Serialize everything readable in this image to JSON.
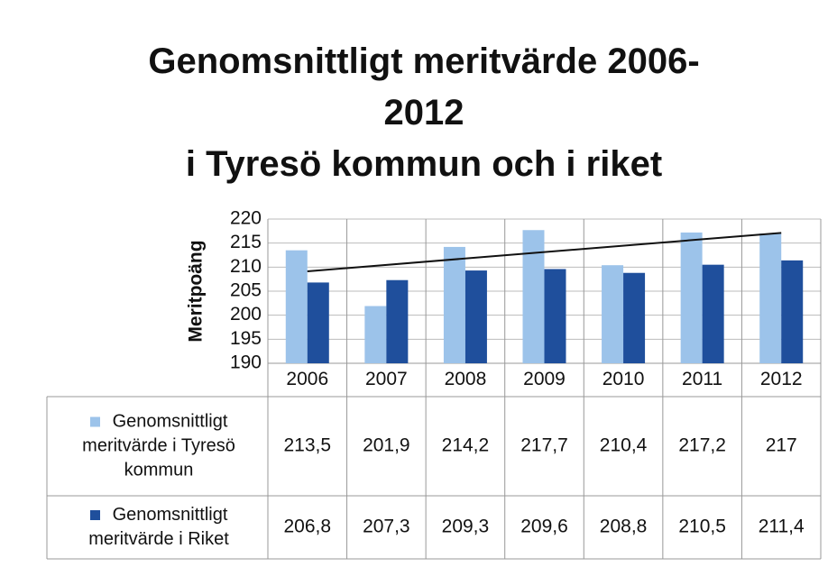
{
  "chart_data": {
    "type": "bar",
    "title": "Genomsnittligt meritvärde 2006-\n2012\ni Tyresö kommun och i riket",
    "y_label": "Meritpoäng",
    "categories": [
      "2006",
      "2007",
      "2008",
      "2009",
      "2010",
      "2011",
      "2012"
    ],
    "series": [
      {
        "name": "Genomsnittligt meritvärde i Tyresö kommun",
        "color": "#9cc3ea",
        "trendline": true,
        "values": [
          213.5,
          201.9,
          214.2,
          217.7,
          210.4,
          217.2,
          217
        ],
        "value_labels": [
          "213,5",
          "201,9",
          "214,2",
          "217,7",
          "210,4",
          "217,2",
          "217"
        ]
      },
      {
        "name": "Genomsnittligt meritvärde i Riket",
        "color": "#1f4f9c",
        "values": [
          206.8,
          207.3,
          209.3,
          209.6,
          208.8,
          210.5,
          211.4
        ],
        "value_labels": [
          "206,8",
          "207,3",
          "209,3",
          "209,6",
          "208,8",
          "210,5",
          "211,4"
        ]
      }
    ],
    "ylim": [
      190,
      220
    ],
    "yticks": [
      190,
      195,
      200,
      205,
      210,
      215,
      220
    ],
    "grid": true,
    "data_table": true
  }
}
